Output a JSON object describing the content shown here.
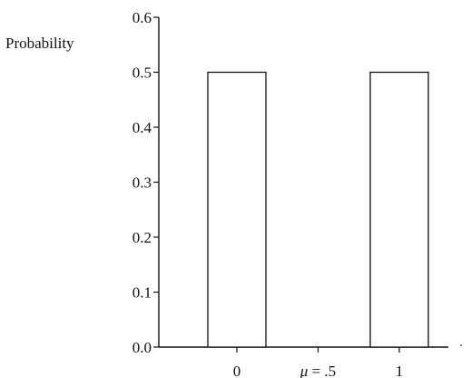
{
  "chart_data": {
    "type": "bar",
    "ylabel": "Probability",
    "xlabel": "",
    "ylim": [
      0,
      0.6
    ],
    "yticks": [
      "0.0",
      "0.1",
      "0.2",
      "0.3",
      "0.4",
      "0.5",
      "0.6"
    ],
    "xticks": [
      {
        "x": 0,
        "label": "0"
      },
      {
        "x": 0.5,
        "label": "μ = .5"
      },
      {
        "x": 1,
        "label": "1"
      }
    ],
    "categories": [
      "0",
      "1"
    ],
    "x": [
      0,
      1
    ],
    "values": [
      0.5,
      0.5
    ],
    "grid": false
  }
}
